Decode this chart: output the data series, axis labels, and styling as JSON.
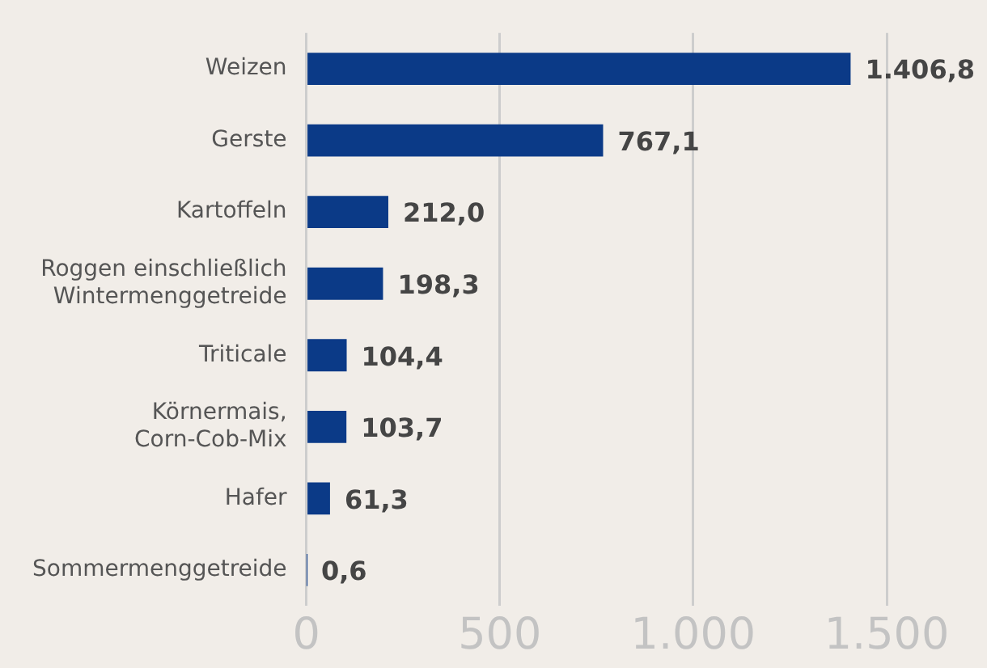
{
  "chart_data": {
    "type": "bar",
    "orientation": "horizontal",
    "categories": [
      "Weizen",
      "Gerste",
      "Kartoffeln",
      "Roggen einschließlich\nWintermenggetreide",
      "Triticale",
      "Körnermais,\nCorn-Cob-Mix",
      "Hafer",
      "Sommermenggetreide"
    ],
    "values": [
      1406.8,
      767.1,
      212.0,
      198.3,
      104.4,
      103.7,
      61.3,
      0.6
    ],
    "value_labels": [
      "1.406,8",
      "767,1",
      "212,0",
      "198,3",
      "104,4",
      "103,7",
      "61,3",
      "0,6"
    ],
    "color": "#0b3a87",
    "xlim": [
      0,
      1500
    ],
    "xticks": [
      0,
      500,
      {
        "value": 1000,
        "label": "1.000"
      },
      {
        "value": 1500,
        "label": "1.500"
      }
    ],
    "grid": "x"
  }
}
